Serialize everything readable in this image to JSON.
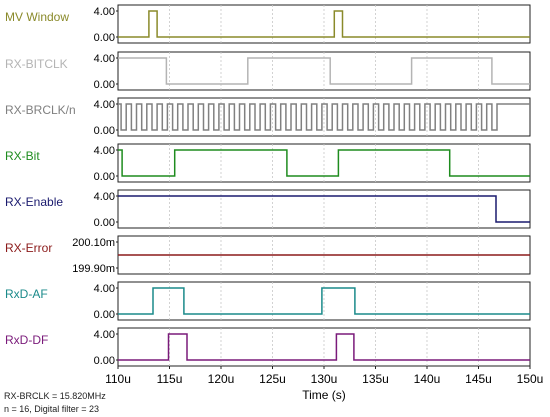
{
  "chart_data": {
    "type": "line",
    "xlabel": "Time (s)",
    "xlim": [
      110,
      150
    ],
    "x_ticks": [
      "110u",
      "115u",
      "120u",
      "125u",
      "130u",
      "135u",
      "140u",
      "145u",
      "150u"
    ],
    "grid": true,
    "panels": [
      {
        "label": "MV Window",
        "color": "#8a8a2a",
        "y_ticks": [
          "4.00",
          "0.00"
        ],
        "x": [
          110,
          113.0,
          113.0,
          113.8,
          113.8,
          131.0,
          131.0,
          131.8,
          131.8,
          150
        ],
        "y": [
          0,
          0,
          4,
          4,
          0,
          0,
          4,
          4,
          0,
          0
        ]
      },
      {
        "label": "RX-BITCLK",
        "color": "#b4b4b4",
        "y_ticks": [
          "4.00",
          "0.00"
        ],
        "x": [
          110,
          110,
          114.7,
          114.7,
          122.6,
          122.6,
          130.6,
          130.6,
          138.5,
          138.5,
          146.3,
          146.3,
          150
        ],
        "y": [
          4,
          4,
          4,
          0,
          0,
          4,
          4,
          0,
          0,
          4,
          4,
          0,
          0
        ]
      },
      {
        "label": "RX-BRCLK/n",
        "color": "#808080",
        "y_ticks": [
          "4.00",
          "0.00"
        ],
        "square_wave": {
          "start": 110.3,
          "half_period": 0.5,
          "end": 146.8,
          "after": 4,
          "first_level": 4
        }
      },
      {
        "label": "RX-Bit",
        "color": "#1e8c1e",
        "y_ticks": [
          "4.00",
          "0.00"
        ],
        "x": [
          110,
          110.4,
          110.4,
          115.5,
          115.5,
          126.4,
          126.4,
          131.4,
          131.4,
          142.2,
          142.2,
          150
        ],
        "y": [
          4,
          4,
          0,
          0,
          4,
          4,
          0,
          0,
          4,
          4,
          0,
          0
        ]
      },
      {
        "label": "RX-Enable",
        "color": "#1a1a6e",
        "y_ticks": [
          "4.00",
          "0.00"
        ],
        "x": [
          110,
          146.7,
          146.7,
          150
        ],
        "y": [
          4,
          4,
          0,
          0
        ]
      },
      {
        "label": "RX-Error",
        "color": "#8b1a1a",
        "y_ticks": [
          "200.10m",
          "199.90m"
        ],
        "x": [
          110,
          150
        ],
        "y": [
          0.2,
          0.2
        ]
      },
      {
        "label": "RxD-AF",
        "color": "#1a8a8a",
        "y_ticks": [
          "4.00",
          "0.00"
        ],
        "x": [
          110,
          113.4,
          113.4,
          116.4,
          116.4,
          129.8,
          129.8,
          133.0,
          133.0,
          150
        ],
        "y": [
          0,
          0,
          4,
          4,
          0,
          0,
          4,
          4,
          0,
          0
        ]
      },
      {
        "label": "RxD-DF",
        "color": "#7a1a7a",
        "y_ticks": [
          "4.00",
          "0.00"
        ],
        "x": [
          110,
          114.9,
          114.9,
          116.7,
          116.7,
          131.2,
          131.2,
          132.9,
          132.9,
          150
        ],
        "y": [
          0,
          0,
          4,
          4,
          0,
          0,
          4,
          4,
          0,
          0
        ]
      }
    ]
  },
  "notes": {
    "line1": "RX-BRCLK = 15.820MHz",
    "line2": "n = 16, Digital filter = 23"
  }
}
